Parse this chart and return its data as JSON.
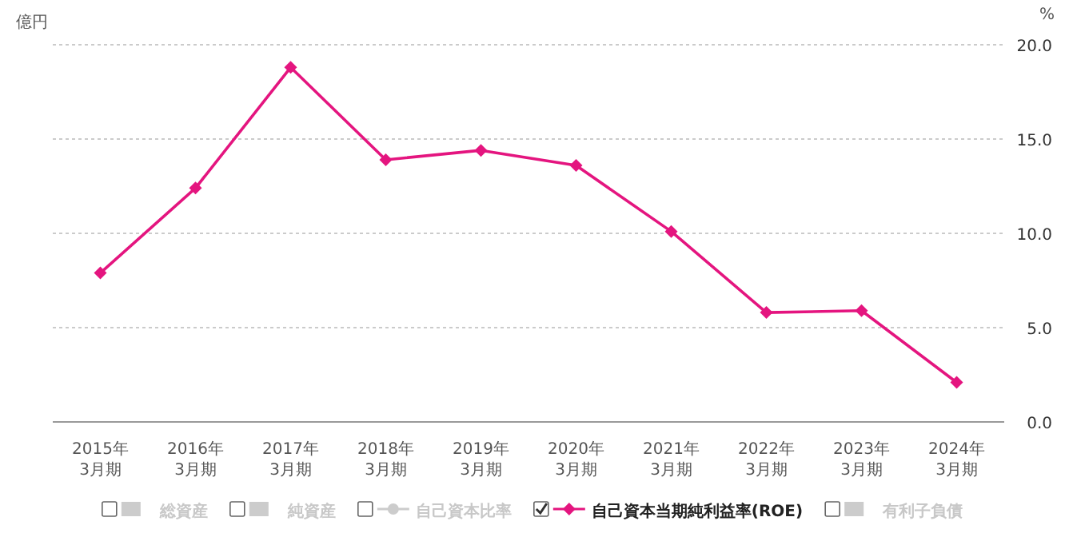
{
  "chart_data": {
    "type": "line",
    "ylabel": "億円",
    "y2label": "%",
    "categories": [
      "2015年\n3月期",
      "2016年\n3月期",
      "2017年\n3月期",
      "2018年\n3月期",
      "2019年\n3月期",
      "2020年\n3月期",
      "2021年\n3月期",
      "2022年\n3月期",
      "2023年\n3月期",
      "2024年\n3月期"
    ],
    "series": [
      {
        "name": "総資産",
        "type": "bar",
        "color": "#cccccc",
        "values": [
          null,
          null,
          null,
          null,
          null,
          null,
          null,
          null,
          null,
          null
        ]
      },
      {
        "name": "純資産",
        "type": "bar",
        "color": "#cccccc",
        "values": [
          null,
          null,
          null,
          null,
          null,
          null,
          null,
          null,
          null,
          null
        ]
      },
      {
        "name": "自己資本比率",
        "type": "line",
        "color": "#cccccc",
        "values": [
          null,
          null,
          null,
          null,
          null,
          null,
          null,
          null,
          null,
          null
        ]
      },
      {
        "name": "自己資本当期純利益率(ROE)",
        "color": "#e4157f",
        "axis": "y2",
        "marker": "diamond",
        "values": [
          7.9,
          12.4,
          18.8,
          13.9,
          14.4,
          13.6,
          10.1,
          5.8,
          5.9,
          2.1
        ]
      },
      {
        "name": "有利子負債",
        "type": "bar",
        "color": "#cccccc",
        "values": [
          null,
          null,
          null,
          null,
          null,
          null,
          null,
          null,
          null,
          null
        ]
      }
    ],
    "y2lim": [
      0,
      20
    ],
    "y2ticks": [
      {
        "value": 0,
        "label": "0.0"
      },
      {
        "value": 5,
        "label": "5.0"
      },
      {
        "value": 10,
        "label": "10.0"
      },
      {
        "value": 15,
        "label": "15.0"
      },
      {
        "value": 20,
        "label": "20.0"
      }
    ],
    "grid": "y",
    "legend": "bottom"
  }
}
